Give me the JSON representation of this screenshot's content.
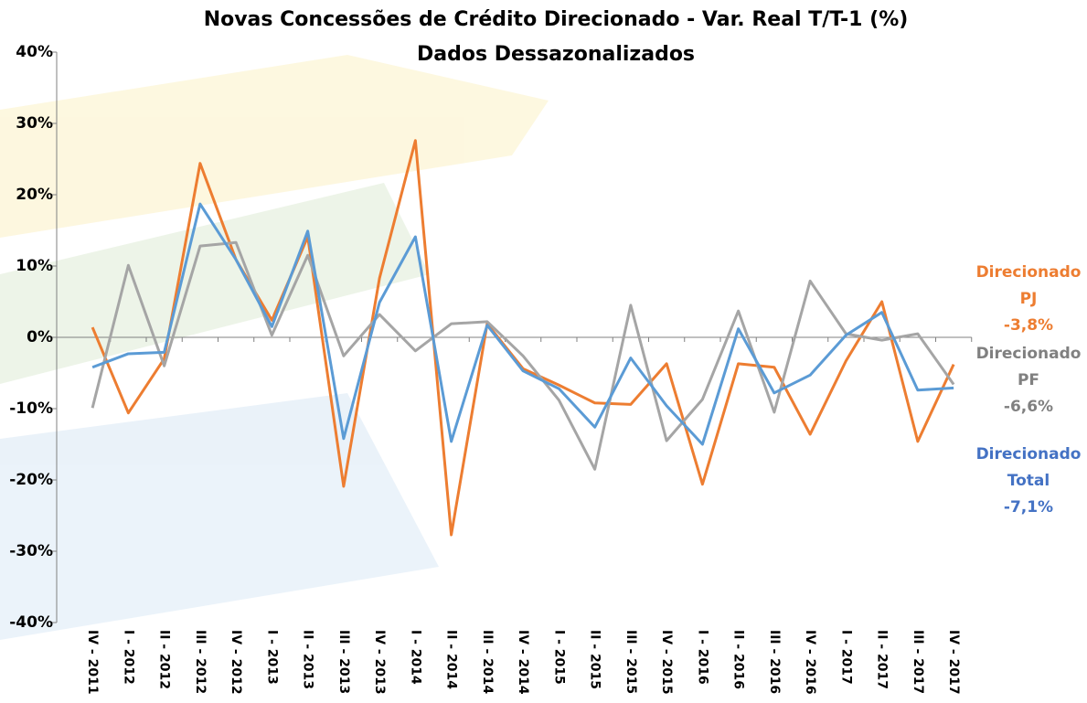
{
  "chart_data": {
    "type": "line",
    "title": "Novas Concessões de Crédito Direcionado - Var. Real T/T-1 (%)",
    "subtitle": "Dados Dessazonalizados",
    "categories": [
      "IV - 2011",
      "I - 2012",
      "II - 2012",
      "III - 2012",
      "IV - 2012",
      "I - 2013",
      "II - 2013",
      "III - 2013",
      "IV - 2013",
      "I - 2014",
      "II - 2014",
      "III - 2014",
      "IV - 2014",
      "I - 2015",
      "II - 2015",
      "III - 2015",
      "IV - 2015",
      "I - 2016",
      "II - 2016",
      "III - 2016",
      "IV - 2016",
      "I - 2017",
      "II - 2017",
      "III - 2017",
      "IV - 2017"
    ],
    "series": [
      {
        "name": "Direcionado PJ",
        "color": "#ED7D31",
        "label_color": "#ED7D31",
        "values": [
          1.4,
          -10.6,
          -3.0,
          24.4,
          10.9,
          2.4,
          14.1,
          -20.9,
          8.3,
          27.6,
          -27.7,
          1.9,
          -4.4,
          -6.7,
          -9.2,
          -9.4,
          -3.7,
          -20.6,
          -3.7,
          -4.2,
          -13.6,
          -3.3,
          5.0,
          -14.6,
          -3.8
        ],
        "value_labels": [
          null,
          null,
          null,
          null,
          null,
          null,
          null,
          null,
          null,
          null,
          null,
          null,
          null,
          null,
          null,
          null,
          null,
          null,
          null,
          null,
          null,
          null,
          null,
          null,
          "-3,8%"
        ]
      },
      {
        "name": "Direcionado PF",
        "color": "#A5A5A5",
        "label_color": "#808080",
        "values": [
          -9.9,
          10.1,
          -4.0,
          12.8,
          13.3,
          0.3,
          11.5,
          -2.6,
          3.2,
          -1.9,
          1.9,
          2.2,
          -2.6,
          -8.8,
          -18.5,
          4.5,
          -14.5,
          -8.7,
          3.7,
          -10.5,
          7.9,
          0.5,
          -0.4,
          0.5,
          -6.6
        ],
        "value_labels": [
          null,
          null,
          null,
          null,
          null,
          null,
          null,
          null,
          null,
          null,
          null,
          null,
          null,
          null,
          null,
          null,
          null,
          null,
          null,
          null,
          null,
          null,
          null,
          null,
          "-6,6%"
        ]
      },
      {
        "name": "Direcionado Total",
        "color": "#5B9BD5",
        "label_color": "#4472C4",
        "values": [
          -4.2,
          -2.3,
          -2.1,
          18.7,
          10.9,
          1.5,
          14.9,
          -14.2,
          4.9,
          14.1,
          -14.6,
          1.7,
          -4.7,
          -7.2,
          -12.6,
          -2.9,
          -9.6,
          -15.0,
          1.2,
          -7.8,
          -5.3,
          0.3,
          3.5,
          -7.4,
          -7.1
        ],
        "value_labels": [
          null,
          null,
          null,
          null,
          null,
          null,
          null,
          null,
          null,
          null,
          null,
          null,
          null,
          null,
          null,
          null,
          null,
          null,
          null,
          null,
          null,
          null,
          null,
          null,
          "-7,1%"
        ]
      }
    ],
    "ylim": [
      -40,
      40
    ],
    "yticks": [
      {
        "value": -40,
        "label": "-40%"
      },
      {
        "value": -30,
        "label": "-30%"
      },
      {
        "value": -20,
        "label": "-20%"
      },
      {
        "value": -10,
        "label": "-10%"
      },
      {
        "value": 0,
        "label": "0%"
      },
      {
        "value": 10,
        "label": "10%"
      },
      {
        "value": 20,
        "label": "20%"
      },
      {
        "value": 30,
        "label": "30%"
      },
      {
        "value": 40,
        "label": "40%"
      }
    ],
    "grid": false
  }
}
